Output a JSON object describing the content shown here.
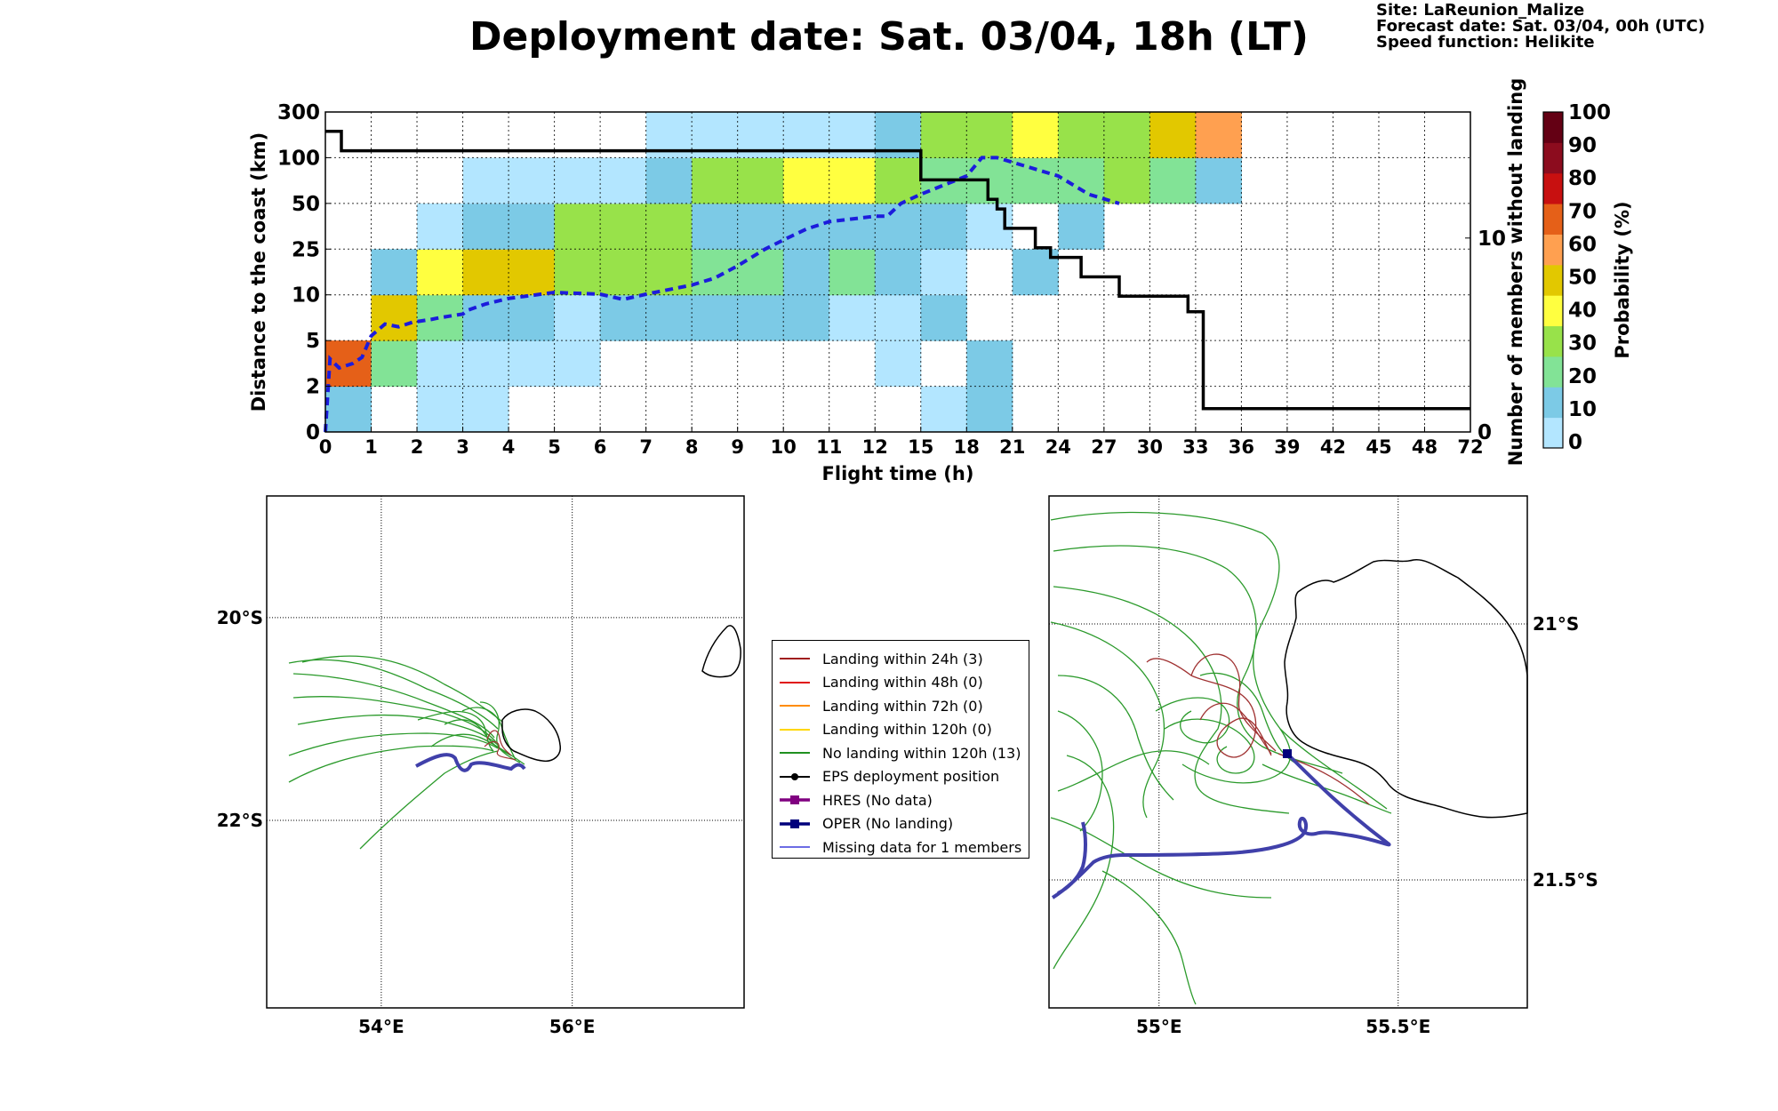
{
  "header": {
    "title": "Deployment date: Sat. 03/04, 18h (LT)",
    "site": "Site: LaReunion_Malize",
    "forecast": "Forecast date: Sat. 03/04, 00h (UTC)",
    "speed": "Speed function: Helikite"
  },
  "colors": {
    "scale": [
      "#b3e6ff",
      "#7ccae6",
      "#82e396",
      "#98e24a",
      "#ffff40",
      "#e2c800",
      "#ffa050",
      "#e56018",
      "#c81010",
      "#8c0c1e",
      "#640014"
    ],
    "median_line": "#1c1cdc",
    "count_line": "#000000"
  },
  "chart_data": [
    {
      "type": "heatmap",
      "title": "Deployment date: Sat. 03/04, 18h (LT)",
      "xlabel": "Flight time (h)",
      "ylabel": "Distance to the coast (km)",
      "ylabel_right": "Number of members without landing",
      "colorbar_label": "Probability (%)",
      "x_ticks": [
        "0",
        "1",
        "2",
        "3",
        "4",
        "5",
        "6",
        "7",
        "8",
        "9",
        "10",
        "11",
        "12",
        "15",
        "18",
        "21",
        "24",
        "27",
        "30",
        "33",
        "36",
        "39",
        "42",
        "45",
        "48",
        "72"
      ],
      "y_ticks": [
        "0",
        "2",
        "5",
        "10",
        "25",
        "50",
        "100",
        "300"
      ],
      "right_ticks": [
        "0",
        "10"
      ],
      "right_ylim": [
        0,
        16.5
      ],
      "colorbar_ticks": [
        "0",
        "10",
        "20",
        "30",
        "40",
        "50",
        "60",
        "70",
        "80",
        "90",
        "100"
      ],
      "cells": [
        {
          "x": "0",
          "y": "0",
          "prob": 10
        },
        {
          "x": "0",
          "y": "2",
          "prob": 70
        },
        {
          "x": "1",
          "y": "2",
          "prob": 20
        },
        {
          "x": "1",
          "y": "5",
          "prob": 50
        },
        {
          "x": "1",
          "y": "10",
          "prob": 10
        },
        {
          "x": "2",
          "y": "0",
          "prob": 0
        },
        {
          "x": "2",
          "y": "2",
          "prob": 0
        },
        {
          "x": "2",
          "y": "5",
          "prob": 20
        },
        {
          "x": "2",
          "y": "10",
          "prob": 40
        },
        {
          "x": "2",
          "y": "25",
          "prob": 0
        },
        {
          "x": "3",
          "y": "0",
          "prob": 0
        },
        {
          "x": "3",
          "y": "2",
          "prob": 0
        },
        {
          "x": "3",
          "y": "5",
          "prob": 10
        },
        {
          "x": "3",
          "y": "10",
          "prob": 50
        },
        {
          "x": "3",
          "y": "25",
          "prob": 10
        },
        {
          "x": "3",
          "y": "50",
          "prob": 0
        },
        {
          "x": "4",
          "y": "2",
          "prob": 0
        },
        {
          "x": "4",
          "y": "5",
          "prob": 10
        },
        {
          "x": "4",
          "y": "10",
          "prob": 50
        },
        {
          "x": "4",
          "y": "25",
          "prob": 10
        },
        {
          "x": "4",
          "y": "50",
          "prob": 0
        },
        {
          "x": "5",
          "y": "2",
          "prob": 0
        },
        {
          "x": "5",
          "y": "5",
          "prob": 0
        },
        {
          "x": "5",
          "y": "10",
          "prob": 30
        },
        {
          "x": "5",
          "y": "25",
          "prob": 30
        },
        {
          "x": "5",
          "y": "50",
          "prob": 0
        },
        {
          "x": "6",
          "y": "5",
          "prob": 10
        },
        {
          "x": "6",
          "y": "10",
          "prob": 30
        },
        {
          "x": "6",
          "y": "25",
          "prob": 30
        },
        {
          "x": "6",
          "y": "50",
          "prob": 0
        },
        {
          "x": "7",
          "y": "5",
          "prob": 10
        },
        {
          "x": "7",
          "y": "10",
          "prob": 30
        },
        {
          "x": "7",
          "y": "25",
          "prob": 30
        },
        {
          "x": "7",
          "y": "50",
          "prob": 10
        },
        {
          "x": "7",
          "y": "100",
          "prob": 0
        },
        {
          "x": "8",
          "y": "5",
          "prob": 10
        },
        {
          "x": "8",
          "y": "10",
          "prob": 20
        },
        {
          "x": "8",
          "y": "25",
          "prob": 10
        },
        {
          "x": "8",
          "y": "50",
          "prob": 30
        },
        {
          "x": "8",
          "y": "100",
          "prob": 0
        },
        {
          "x": "9",
          "y": "5",
          "prob": 10
        },
        {
          "x": "9",
          "y": "10",
          "prob": 20
        },
        {
          "x": "9",
          "y": "25",
          "prob": 10
        },
        {
          "x": "9",
          "y": "50",
          "prob": 30
        },
        {
          "x": "9",
          "y": "100",
          "prob": 0
        },
        {
          "x": "10",
          "y": "5",
          "prob": 10
        },
        {
          "x": "10",
          "y": "10",
          "prob": 10
        },
        {
          "x": "10",
          "y": "25",
          "prob": 10
        },
        {
          "x": "10",
          "y": "50",
          "prob": 40
        },
        {
          "x": "10",
          "y": "100",
          "prob": 0
        },
        {
          "x": "11",
          "y": "5",
          "prob": 0
        },
        {
          "x": "11",
          "y": "10",
          "prob": 20
        },
        {
          "x": "11",
          "y": "25",
          "prob": 10
        },
        {
          "x": "11",
          "y": "50",
          "prob": 40
        },
        {
          "x": "11",
          "y": "100",
          "prob": 0
        },
        {
          "x": "12",
          "y": "2",
          "prob": 0
        },
        {
          "x": "12",
          "y": "5",
          "prob": 0
        },
        {
          "x": "12",
          "y": "10",
          "prob": 10
        },
        {
          "x": "12",
          "y": "25",
          "prob": 10
        },
        {
          "x": "12",
          "y": "50",
          "prob": 30
        },
        {
          "x": "12",
          "y": "100",
          "prob": 10
        },
        {
          "x": "15",
          "y": "0",
          "prob": 0
        },
        {
          "x": "15",
          "y": "5",
          "prob": 10
        },
        {
          "x": "15",
          "y": "10",
          "prob": 0
        },
        {
          "x": "15",
          "y": "25",
          "prob": 10
        },
        {
          "x": "15",
          "y": "50",
          "prob": 20
        },
        {
          "x": "15",
          "y": "100",
          "prob": 30
        },
        {
          "x": "18",
          "y": "0",
          "prob": 10
        },
        {
          "x": "18",
          "y": "2",
          "prob": 10
        },
        {
          "x": "18",
          "y": "25",
          "prob": 0
        },
        {
          "x": "18",
          "y": "50",
          "prob": 20
        },
        {
          "x": "18",
          "y": "100",
          "prob": 30
        },
        {
          "x": "21",
          "y": "10",
          "prob": 10
        },
        {
          "x": "21",
          "y": "50",
          "prob": 20
        },
        {
          "x": "21",
          "y": "100",
          "prob": 40
        },
        {
          "x": "24",
          "y": "25",
          "prob": 10
        },
        {
          "x": "24",
          "y": "50",
          "prob": 20
        },
        {
          "x": "24",
          "y": "100",
          "prob": 30
        },
        {
          "x": "27",
          "y": "50",
          "prob": 30
        },
        {
          "x": "27",
          "y": "100",
          "prob": 30
        },
        {
          "x": "30",
          "y": "50",
          "prob": 20
        },
        {
          "x": "30",
          "y": "100",
          "prob": 50
        },
        {
          "x": "33",
          "y": "50",
          "prob": 10
        },
        {
          "x": "33",
          "y": "100",
          "prob": 60
        }
      ],
      "series": [
        {
          "type": "line",
          "style": "dashed",
          "color": "#1c1cdc",
          "points": [
            [
              0,
              0
            ],
            [
              0.1,
              3.8
            ],
            [
              0.3,
              3.2
            ],
            [
              0.6,
              3.5
            ],
            [
              0.8,
              3.9
            ],
            [
              1,
              5.5
            ],
            [
              1.3,
              6.8
            ],
            [
              1.6,
              6.5
            ],
            [
              1.9,
              7
            ],
            [
              2.3,
              7.3
            ],
            [
              2.5,
              7.5
            ],
            [
              3,
              7.9
            ],
            [
              3.1,
              8.3
            ],
            [
              3.5,
              9
            ],
            [
              4,
              9.6
            ],
            [
              5,
              10.8
            ],
            [
              6,
              10.2
            ],
            [
              6.5,
              9.5
            ],
            [
              7,
              10.2
            ],
            [
              8,
              13.2
            ],
            [
              8.5,
              15.5
            ],
            [
              9,
              19.5
            ],
            [
              9.6,
              25
            ],
            [
              10,
              30
            ],
            [
              10.5,
              36
            ],
            [
              11,
              40
            ],
            [
              12,
              43
            ],
            [
              12.8,
              43
            ],
            [
              13.7,
              50
            ],
            [
              15,
              60
            ],
            [
              18,
              80
            ],
            [
              19,
              100
            ],
            [
              20,
              100
            ],
            [
              22,
              90
            ],
            [
              24,
              80
            ],
            [
              26,
              60
            ],
            [
              28,
              50
            ]
          ]
        },
        {
          "type": "step",
          "axis": "right",
          "color": "#000000",
          "name": "",
          "points": [
            [
              0,
              15.5
            ],
            [
              0.35,
              15.5
            ],
            [
              0.35,
              14.5
            ],
            [
              15,
              14.5
            ],
            [
              15,
              13
            ],
            [
              19.4,
              13
            ],
            [
              19.4,
              12
            ],
            [
              20,
              12
            ],
            [
              20,
              11.5
            ],
            [
              20.5,
              11.5
            ],
            [
              20.5,
              10.5
            ],
            [
              22.5,
              10.5
            ],
            [
              22.5,
              9.5
            ],
            [
              23.5,
              9.5
            ],
            [
              23.5,
              9
            ],
            [
              25.5,
              9
            ],
            [
              25.5,
              8
            ],
            [
              28,
              8
            ],
            [
              28,
              7
            ],
            [
              32.5,
              7
            ],
            [
              32.5,
              6.2
            ],
            [
              33.5,
              6.2
            ],
            [
              33.5,
              1.2
            ],
            [
              72,
              1.2
            ]
          ]
        }
      ]
    },
    {
      "type": "map",
      "title": "",
      "x_ticks": [
        "54°E",
        "56°E"
      ],
      "y_ticks": [
        "20°S",
        "22°S"
      ],
      "xlim": [
        52.8,
        57.8
      ],
      "ylim": [
        -23.85,
        -18.8
      ],
      "grid": true
    },
    {
      "type": "map",
      "title": "",
      "x_ticks": [
        "55°E",
        "55.5°E"
      ],
      "y_ticks": [
        "21°S",
        "21.5°S"
      ],
      "xlim": [
        54.77,
        55.77
      ],
      "ylim": [
        -21.75,
        -20.75
      ],
      "grid": true
    }
  ],
  "legend": {
    "items": [
      {
        "label": "Landing within 24h (3)",
        "color": "#a01e1e"
      },
      {
        "label": "Landing within 48h (0)",
        "color": "#e01010"
      },
      {
        "label": "Landing within 72h (0)",
        "color": "#ff8c00"
      },
      {
        "label": "Landing within 120h (0)",
        "color": "#ffd700"
      },
      {
        "label": "No landing within 120h (13)",
        "color": "#209020"
      },
      {
        "label": "EPS deployment position",
        "color": "#000000"
      },
      {
        "label": "HRES (No data)",
        "color": "#800080"
      },
      {
        "label": "OPER (No landing)",
        "color": "#00007c"
      },
      {
        "label": "Missing data for 1 members",
        "color": "#3b3bdc"
      }
    ]
  }
}
